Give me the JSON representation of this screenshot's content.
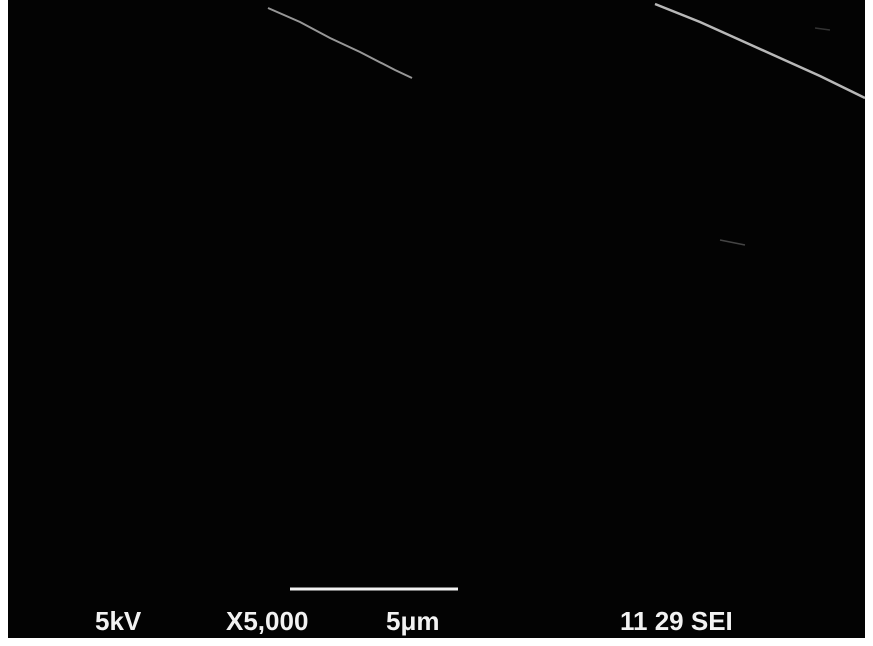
{
  "info_bar": {
    "voltage": "5kV",
    "magnification": "X5,000",
    "scale": "5μm",
    "label": "11 29 SEI"
  }
}
